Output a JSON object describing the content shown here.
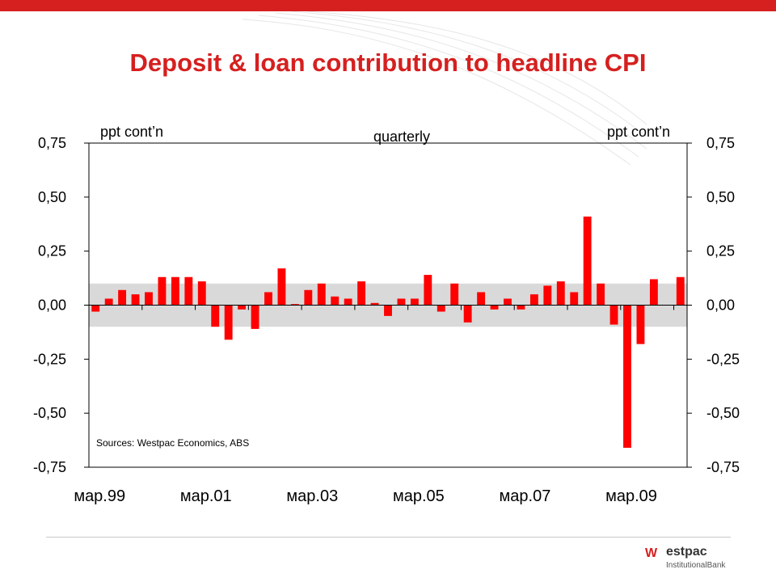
{
  "slide": {
    "title": "Deposit & loan contribution to headline CPI",
    "source": "Sources: Westpac Economics, ABS",
    "logo": {
      "brand": "estpac",
      "sub": "InstitutionalBank",
      "mark": "W"
    },
    "colors": {
      "accent": "#d5201f",
      "bar": "#ff0000",
      "band": "#d9d9d9"
    }
  },
  "chart_data": {
    "type": "bar",
    "title": "",
    "left_axis_label": "ppt cont’n",
    "right_axis_label": "ppt cont’n",
    "frequency_label": "quarterly",
    "ylim": [
      -0.75,
      0.75
    ],
    "y_ticks": [
      "0,75",
      "0,50",
      "0,25",
      "0,00",
      "-0,25",
      "-0,50",
      "-0,75"
    ],
    "y_tick_values": [
      0.75,
      0.5,
      0.25,
      0.0,
      -0.25,
      -0.5,
      -0.75
    ],
    "x_tick_labels": [
      "мар.99",
      "мар.01",
      "мар.03",
      "мар.05",
      "мар.07",
      "мар.09"
    ],
    "shaded_band": [
      -0.1,
      0.1
    ],
    "values": [
      -0.03,
      0.03,
      0.07,
      0.05,
      0.06,
      0.13,
      0.13,
      0.13,
      0.11,
      -0.1,
      -0.16,
      -0.02,
      -0.11,
      0.06,
      0.17,
      0.005,
      0.07,
      0.1,
      0.04,
      0.03,
      0.11,
      0.01,
      -0.05,
      0.03,
      0.03,
      0.14,
      -0.03,
      0.1,
      -0.08,
      0.06,
      -0.02,
      0.03,
      -0.02,
      0.05,
      0.09,
      0.11,
      0.06,
      0.41,
      0.1,
      -0.09,
      -0.66,
      -0.18,
      0.12,
      0.0,
      0.13
    ]
  }
}
